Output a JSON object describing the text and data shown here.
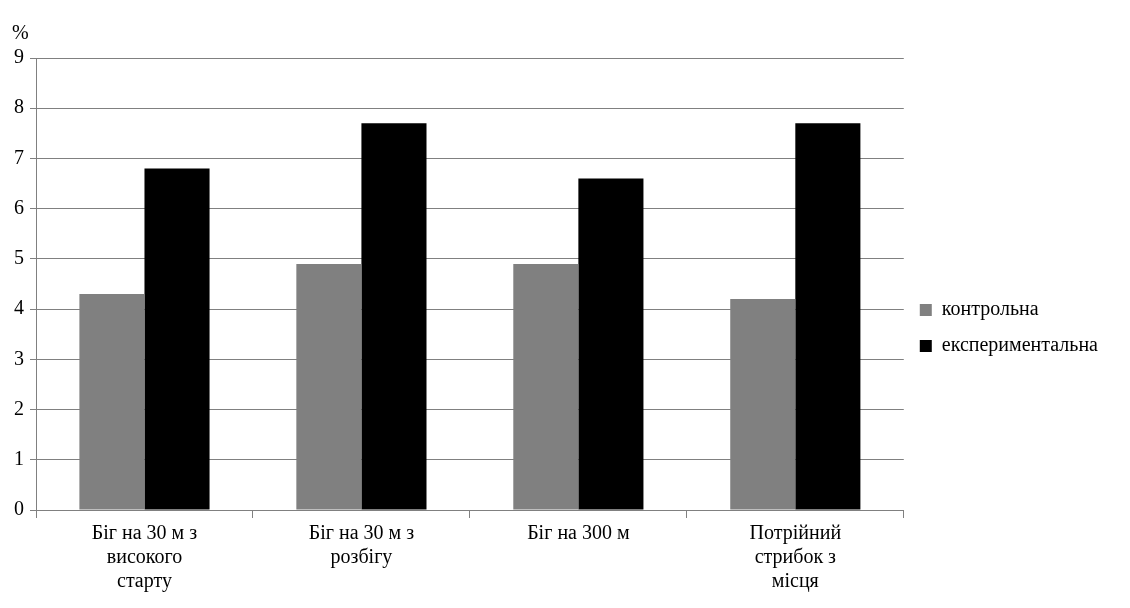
{
  "chart_data": {
    "type": "bar",
    "ylabel": "%",
    "categories": [
      "Біг на 30 м з високого старту",
      "Біг на 30 м з розбігу",
      "Біг на 300 м",
      "Потрійний стрибок з місця"
    ],
    "series": [
      {
        "name": "контрольна",
        "color": "#808080",
        "values": [
          4.3,
          4.9,
          4.9,
          4.2
        ]
      },
      {
        "name": "експериментальна",
        "color": "#000000",
        "values": [
          6.8,
          7.7,
          6.6,
          7.7
        ]
      }
    ],
    "ylim": [
      0,
      9
    ],
    "yticks": [
      0,
      1,
      2,
      3,
      4,
      5,
      6,
      7,
      8,
      9
    ],
    "grid": "y",
    "legend": "right"
  }
}
